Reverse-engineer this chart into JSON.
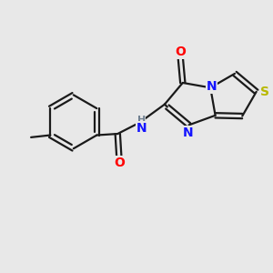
{
  "bg_color": "#e8e8e8",
  "bond_color": "#1a1a1a",
  "bond_width": 1.6,
  "atom_colors": {
    "N": "#1414ff",
    "O": "#ff0000",
    "S": "#b8b800",
    "H": "#708090",
    "C": "#1a1a1a"
  },
  "font_size_atom": 10,
  "font_size_nh": 9
}
